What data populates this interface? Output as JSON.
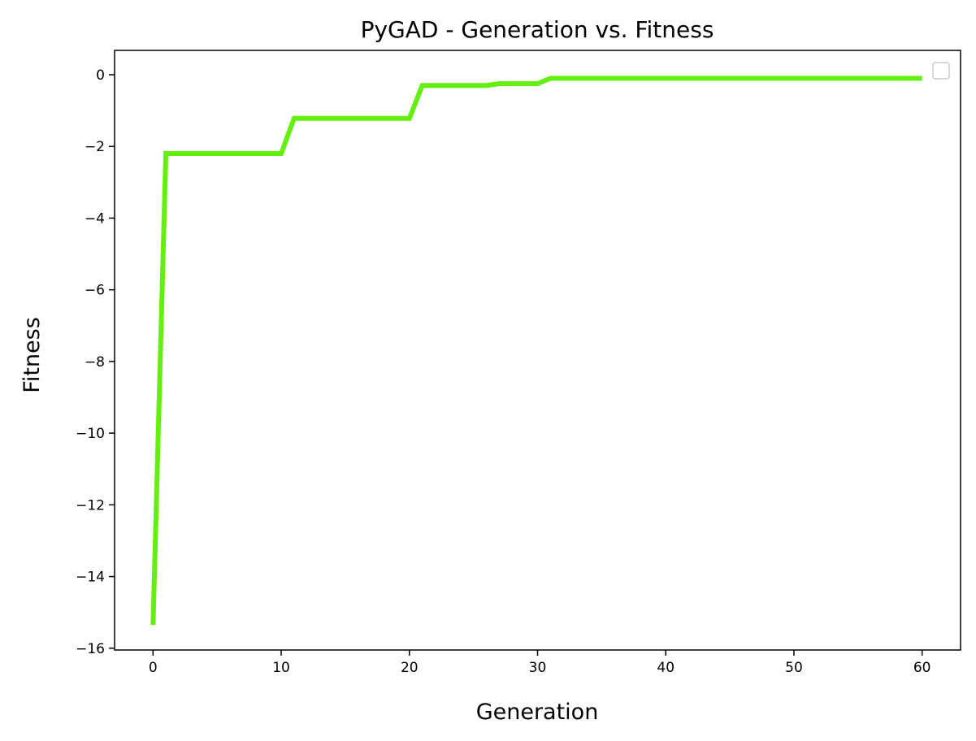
{
  "chart_data": {
    "type": "line",
    "title": "PyGAD - Generation vs. Fitness",
    "xlabel": "Generation",
    "ylabel": "Fitness",
    "xlim": [
      -3,
      63
    ],
    "ylim": [
      -16.05,
      0.68
    ],
    "xticks": [
      0,
      10,
      20,
      30,
      40,
      50,
      60
    ],
    "xtick_labels": [
      "0",
      "10",
      "20",
      "30",
      "40",
      "50",
      "60"
    ],
    "yticks": [
      0,
      -2,
      -4,
      -6,
      -8,
      -10,
      -12,
      -14,
      -16
    ],
    "ytick_labels": [
      "0",
      "−2",
      "−4",
      "−6",
      "−8",
      "−10",
      "−12",
      "−14",
      "−16"
    ],
    "grid": false,
    "legend": {
      "placement": "top-right",
      "entries": []
    },
    "series": [
      {
        "color": "#64f00f",
        "x": [
          0,
          1,
          2,
          3,
          4,
          5,
          6,
          7,
          8,
          9,
          10,
          11,
          12,
          13,
          14,
          15,
          16,
          17,
          18,
          19,
          20,
          21,
          22,
          23,
          24,
          25,
          26,
          27,
          28,
          29,
          30,
          31,
          32,
          33,
          34,
          35,
          36,
          37,
          38,
          39,
          40,
          41,
          42,
          43,
          44,
          45,
          46,
          47,
          48,
          49,
          50,
          51,
          52,
          53,
          54,
          55,
          56,
          57,
          58,
          59,
          60
        ],
        "y": [
          -15.35,
          -2.2,
          -2.2,
          -2.2,
          -2.2,
          -2.2,
          -2.2,
          -2.2,
          -2.2,
          -2.2,
          -2.2,
          -1.22,
          -1.22,
          -1.22,
          -1.22,
          -1.22,
          -1.22,
          -1.22,
          -1.22,
          -1.22,
          -1.22,
          -0.3,
          -0.3,
          -0.3,
          -0.3,
          -0.3,
          -0.3,
          -0.25,
          -0.25,
          -0.25,
          -0.25,
          -0.1,
          -0.1,
          -0.1,
          -0.1,
          -0.1,
          -0.1,
          -0.1,
          -0.1,
          -0.1,
          -0.1,
          -0.1,
          -0.1,
          -0.1,
          -0.1,
          -0.1,
          -0.1,
          -0.1,
          -0.1,
          -0.1,
          -0.1,
          -0.1,
          -0.1,
          -0.1,
          -0.1,
          -0.1,
          -0.1,
          -0.1,
          -0.1,
          -0.1,
          -0.1
        ]
      }
    ]
  }
}
